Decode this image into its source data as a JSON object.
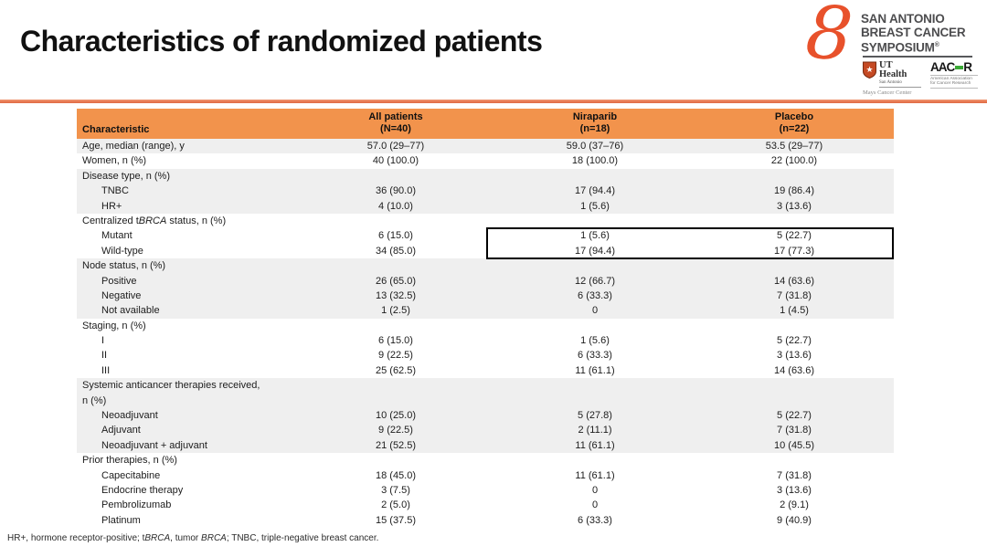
{
  "slide": {
    "title": "Characteristics of randomized patients",
    "footnote": "HR+, hormone receptor-positive; t*BRCA*, tumor *BRCA*; TNBC, triple-negative breast cancer."
  },
  "logo": {
    "ribbon_glyph": "8",
    "org_line1": "SAN ANTONIO",
    "org_line2": "BREAST CANCER",
    "org_line3": "SYMPOSIUM",
    "org_registered": "®",
    "ut_health": {
      "star_glyph": "★",
      "name": "UT Health",
      "city": "San Antonio",
      "center": "Mays Cancer Center"
    },
    "aacr": {
      "acronym_left": "AAC",
      "acronym_right": "R",
      "tagline_line1": "American Association",
      "tagline_line2": "for Cancer Research"
    },
    "colors": {
      "ribbon": "#e8512b",
      "aacr_green": "#3aaa35"
    }
  },
  "table": {
    "columns": [
      {
        "label": "Characteristic",
        "sub": ""
      },
      {
        "label": "All patients",
        "sub": "(N=40)"
      },
      {
        "label": "Niraparib",
        "sub": "(n=18)"
      },
      {
        "label": "Placebo",
        "sub": "(n=22)"
      }
    ],
    "sections": [
      {
        "shaded": true,
        "rows": [
          {
            "label": "Age, median (range), y",
            "indent": false,
            "values": [
              "57.0 (29–77)",
              "59.0 (37–76)",
              "53.5 (29–77)"
            ]
          }
        ]
      },
      {
        "shaded": false,
        "rows": [
          {
            "label": "Women, n (%)",
            "indent": false,
            "values": [
              "40 (100.0)",
              "18 (100.0)",
              "22 (100.0)"
            ]
          }
        ]
      },
      {
        "shaded": true,
        "rows": [
          {
            "label": "Disease type, n (%)",
            "indent": false,
            "values": [
              "",
              "",
              ""
            ]
          },
          {
            "label": "TNBC",
            "indent": true,
            "values": [
              "36 (90.0)",
              "17 (94.4)",
              "19 (86.4)"
            ]
          },
          {
            "label": "HR+",
            "indent": true,
            "values": [
              "4 (10.0)",
              "1 (5.6)",
              "3 (13.6)"
            ]
          }
        ]
      },
      {
        "shaded": false,
        "rows": [
          {
            "label": "Centralized t*BRCA* status, n (%)",
            "indent": false,
            "values": [
              "",
              "",
              ""
            ]
          },
          {
            "label": "Mutant",
            "indent": true,
            "values": [
              "6 (15.0)",
              "1 (5.6)",
              "5 (22.7)"
            ],
            "highlight": true
          },
          {
            "label": "Wild-type",
            "indent": true,
            "values": [
              "34 (85.0)",
              "17 (94.4)",
              "17 (77.3)"
            ],
            "highlight": true
          }
        ]
      },
      {
        "shaded": true,
        "rows": [
          {
            "label": "Node status, n (%)",
            "indent": false,
            "values": [
              "",
              "",
              ""
            ]
          },
          {
            "label": "Positive",
            "indent": true,
            "values": [
              "26 (65.0)",
              "12 (66.7)",
              "14 (63.6)"
            ]
          },
          {
            "label": "Negative",
            "indent": true,
            "values": [
              "13 (32.5)",
              "6 (33.3)",
              "7 (31.8)"
            ]
          },
          {
            "label": "Not available",
            "indent": true,
            "values": [
              "1 (2.5)",
              "0",
              "1 (4.5)"
            ]
          }
        ]
      },
      {
        "shaded": false,
        "rows": [
          {
            "label": "Staging, n (%)",
            "indent": false,
            "values": [
              "",
              "",
              ""
            ]
          },
          {
            "label": "I",
            "indent": true,
            "values": [
              "6 (15.0)",
              "1 (5.6)",
              "5 (22.7)"
            ]
          },
          {
            "label": "II",
            "indent": true,
            "values": [
              "9 (22.5)",
              "6 (33.3)",
              "3 (13.6)"
            ]
          },
          {
            "label": "III",
            "indent": true,
            "values": [
              "25 (62.5)",
              "11 (61.1)",
              "14 (63.6)"
            ]
          }
        ]
      },
      {
        "shaded": true,
        "rows": [
          {
            "label": "Systemic anticancer therapies received,\nn (%)",
            "indent": false,
            "twoline": true,
            "values": [
              "",
              "",
              ""
            ]
          },
          {
            "label": "Neoadjuvant",
            "indent": true,
            "values": [
              "10 (25.0)",
              "5 (27.8)",
              "5 (22.7)"
            ]
          },
          {
            "label": "Adjuvant",
            "indent": true,
            "values": [
              "9 (22.5)",
              "2 (11.1)",
              "7 (31.8)"
            ]
          },
          {
            "label": "Neoadjuvant + adjuvant",
            "indent": true,
            "values": [
              "21 (52.5)",
              "11 (61.1)",
              "10 (45.5)"
            ]
          }
        ]
      },
      {
        "shaded": false,
        "rows": [
          {
            "label": "Prior therapies, n (%)",
            "indent": false,
            "values": [
              "",
              "",
              ""
            ]
          },
          {
            "label": "Capecitabine",
            "indent": true,
            "values": [
              "18 (45.0)",
              "11 (61.1)",
              "7 (31.8)"
            ]
          },
          {
            "label": "Endocrine therapy",
            "indent": true,
            "values": [
              "3 (7.5)",
              "0",
              "3 (13.6)"
            ]
          },
          {
            "label": "Pembrolizumab",
            "indent": true,
            "values": [
              "2 (5.0)",
              "0",
              "2 (9.1)"
            ]
          },
          {
            "label": "Platinum",
            "indent": true,
            "values": [
              "15 (37.5)",
              "6 (33.3)",
              "9 (40.9)"
            ]
          }
        ]
      }
    ],
    "colors": {
      "header_bg": "#f2934c",
      "shaded_row_bg": "#efefef",
      "accent_line": "#e87a52",
      "highlight_border": "#000000"
    }
  }
}
